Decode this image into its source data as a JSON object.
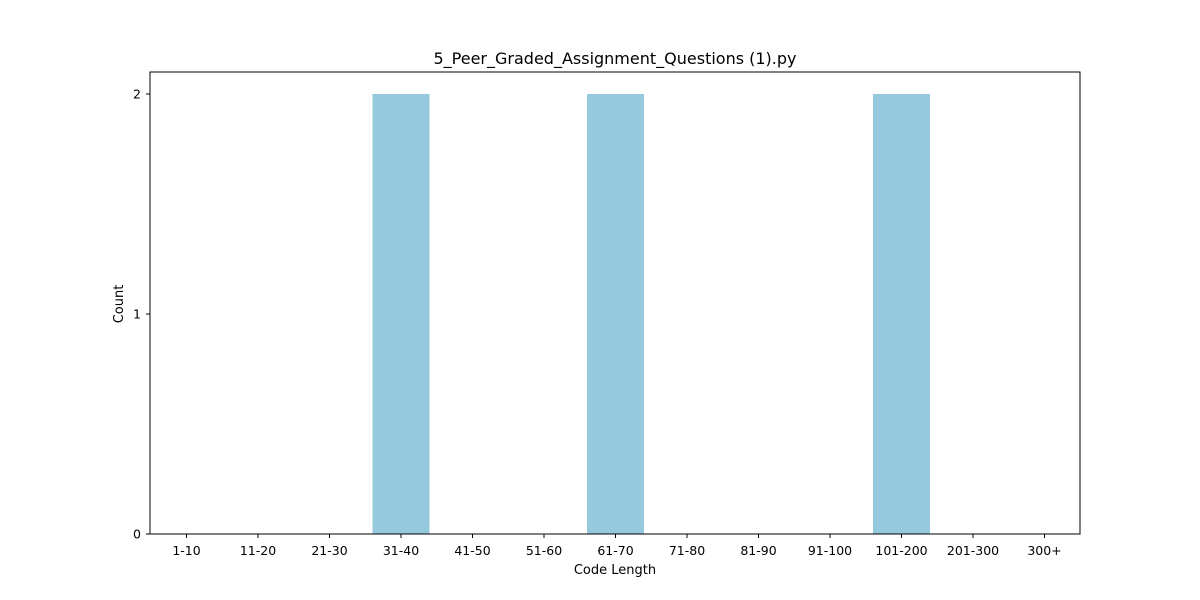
{
  "chart_data": {
    "type": "bar",
    "title": "5_Peer_Graded_Assignment_Questions (1).py",
    "xlabel": "Code Length",
    "ylabel": "Count",
    "categories": [
      "1-10",
      "11-20",
      "21-30",
      "31-40",
      "41-50",
      "51-60",
      "61-70",
      "71-80",
      "81-90",
      "91-100",
      "101-200",
      "201-300",
      "300+"
    ],
    "values": [
      0,
      0,
      0,
      2,
      0,
      0,
      2,
      0,
      0,
      0,
      2,
      0,
      0
    ],
    "ylim": [
      0,
      2.1
    ],
    "yticks": [
      0,
      1,
      2
    ],
    "bar_color": "#95c9de",
    "grid": false,
    "legend": "none"
  }
}
